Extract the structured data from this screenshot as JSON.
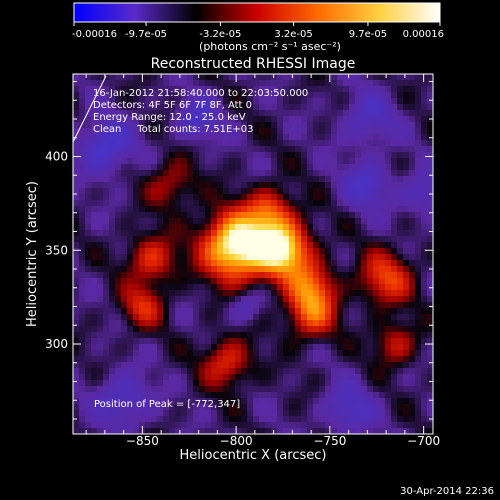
{
  "colorbar": {
    "tick_labels": [
      "-0.00016",
      "-9.7e-05",
      "-3.2e-05",
      "3.2e-05",
      "9.7e-05",
      "0.00016"
    ],
    "unit_label": "(photons cm⁻² s⁻¹ asec⁻²)",
    "stops": [
      "#0000ff",
      "#5a2ac8",
      "#000000",
      "#cc0000",
      "#ff6a00",
      "#ffd040",
      "#ffffff"
    ]
  },
  "chart_data": {
    "type": "heatmap",
    "title": "Reconstructed RHESSI Image",
    "xlabel": "Heliocentric X (arcsec)",
    "ylabel": "Heliocentric Y (arcsec)",
    "xlim": [
      -887,
      -695
    ],
    "ylim": [
      252,
      444
    ],
    "xticks": [
      -850,
      -800,
      -750,
      -700
    ],
    "yticks": [
      300,
      350,
      400
    ],
    "x_tick_labels": [
      "−850",
      "−800",
      "−750",
      "−700"
    ],
    "y_tick_labels": [
      "300",
      "350",
      "400"
    ],
    "colorbar_range": [
      -0.00016,
      0.00016
    ],
    "annotations": [
      "16-Jan-2012 21:58:40.000 to 22:03:50.000",
      "Detectors: 4F 5F 6F 7F 8F, Att 0",
      "Energy Range: 12.0 - 25.0 keV",
      "Clean     Total counts: 7.51E+03"
    ],
    "peak_label": "Position of Peak = [-772,347]",
    "peak": [
      -772,
      347
    ],
    "sources": [
      {
        "x": -800,
        "y": 352,
        "w": 12,
        "amp": 1.25
      },
      {
        "x": -775,
        "y": 350,
        "w": 10,
        "amp": 1.05
      },
      {
        "x": -782,
        "y": 370,
        "w": 9,
        "amp": 0.55
      },
      {
        "x": -760,
        "y": 330,
        "w": 9,
        "amp": 0.6
      },
      {
        "x": -845,
        "y": 345,
        "w": 9,
        "amp": 0.5
      },
      {
        "x": -760,
        "y": 315,
        "w": 9,
        "amp": 0.55
      },
      {
        "x": -805,
        "y": 290,
        "w": 9,
        "amp": 0.5
      },
      {
        "x": -720,
        "y": 335,
        "w": 10,
        "amp": 0.55
      },
      {
        "x": -715,
        "y": 300,
        "w": 8,
        "amp": 0.4
      },
      {
        "x": -835,
        "y": 385,
        "w": 9,
        "amp": 0.35
      },
      {
        "x": -850,
        "y": 320,
        "w": 8,
        "amp": 0.45
      },
      {
        "x": -730,
        "y": 385,
        "w": 9,
        "amp": -0.35
      },
      {
        "x": -870,
        "y": 405,
        "w": 10,
        "amp": -0.45
      },
      {
        "x": -820,
        "y": 420,
        "w": 8,
        "amp": -0.35
      },
      {
        "x": -730,
        "y": 420,
        "w": 10,
        "amp": -0.3
      },
      {
        "x": -860,
        "y": 270,
        "w": 10,
        "amp": -0.35
      },
      {
        "x": -740,
        "y": 265,
        "w": 9,
        "amp": -0.35
      },
      {
        "x": -700,
        "y": 380,
        "w": 8,
        "amp": -0.3
      },
      {
        "x": -795,
        "y": 320,
        "w": 6,
        "amp": -0.25
      }
    ]
  },
  "footer": {
    "date": "30-Apr-2014 22:36"
  }
}
